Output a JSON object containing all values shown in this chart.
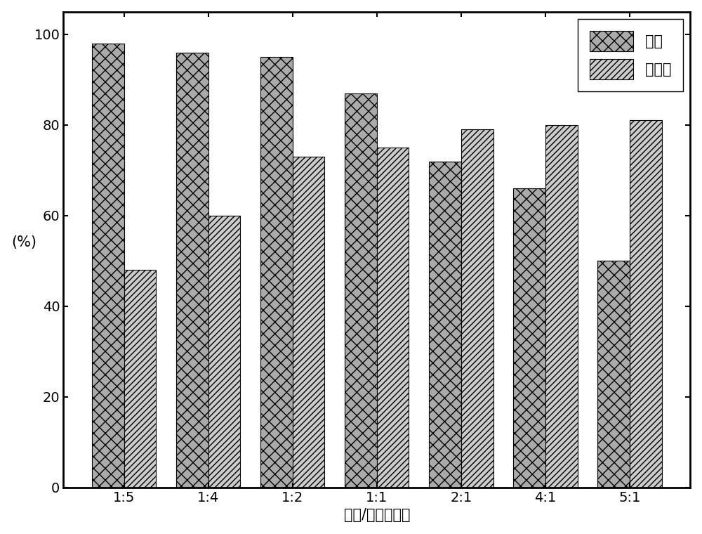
{
  "categories": [
    "1:5",
    "1:4",
    "1:2",
    "1:1",
    "2:1",
    "4:1",
    "5:1"
  ],
  "purity": [
    98,
    96,
    95,
    87,
    72,
    66,
    50
  ],
  "extraction": [
    48,
    60,
    73,
    75,
    79,
    80,
    81
  ],
  "bar_color_purity": "#aaaaaa",
  "bar_color_extraction": "#cccccc",
  "hatch_purity": "xx",
  "hatch_extraction": "////",
  "xlabel": "乙醚/水的体积比",
  "ylabel": "(%)",
  "ylim": [
    0,
    105
  ],
  "yticks": [
    0,
    20,
    40,
    60,
    80,
    100
  ],
  "legend_purity": "纯度",
  "legend_extraction": "萍取率",
  "bar_width": 0.38,
  "edgecolor": "#000000",
  "axis_fontsize": 15,
  "tick_fontsize": 14,
  "legend_fontsize": 15
}
